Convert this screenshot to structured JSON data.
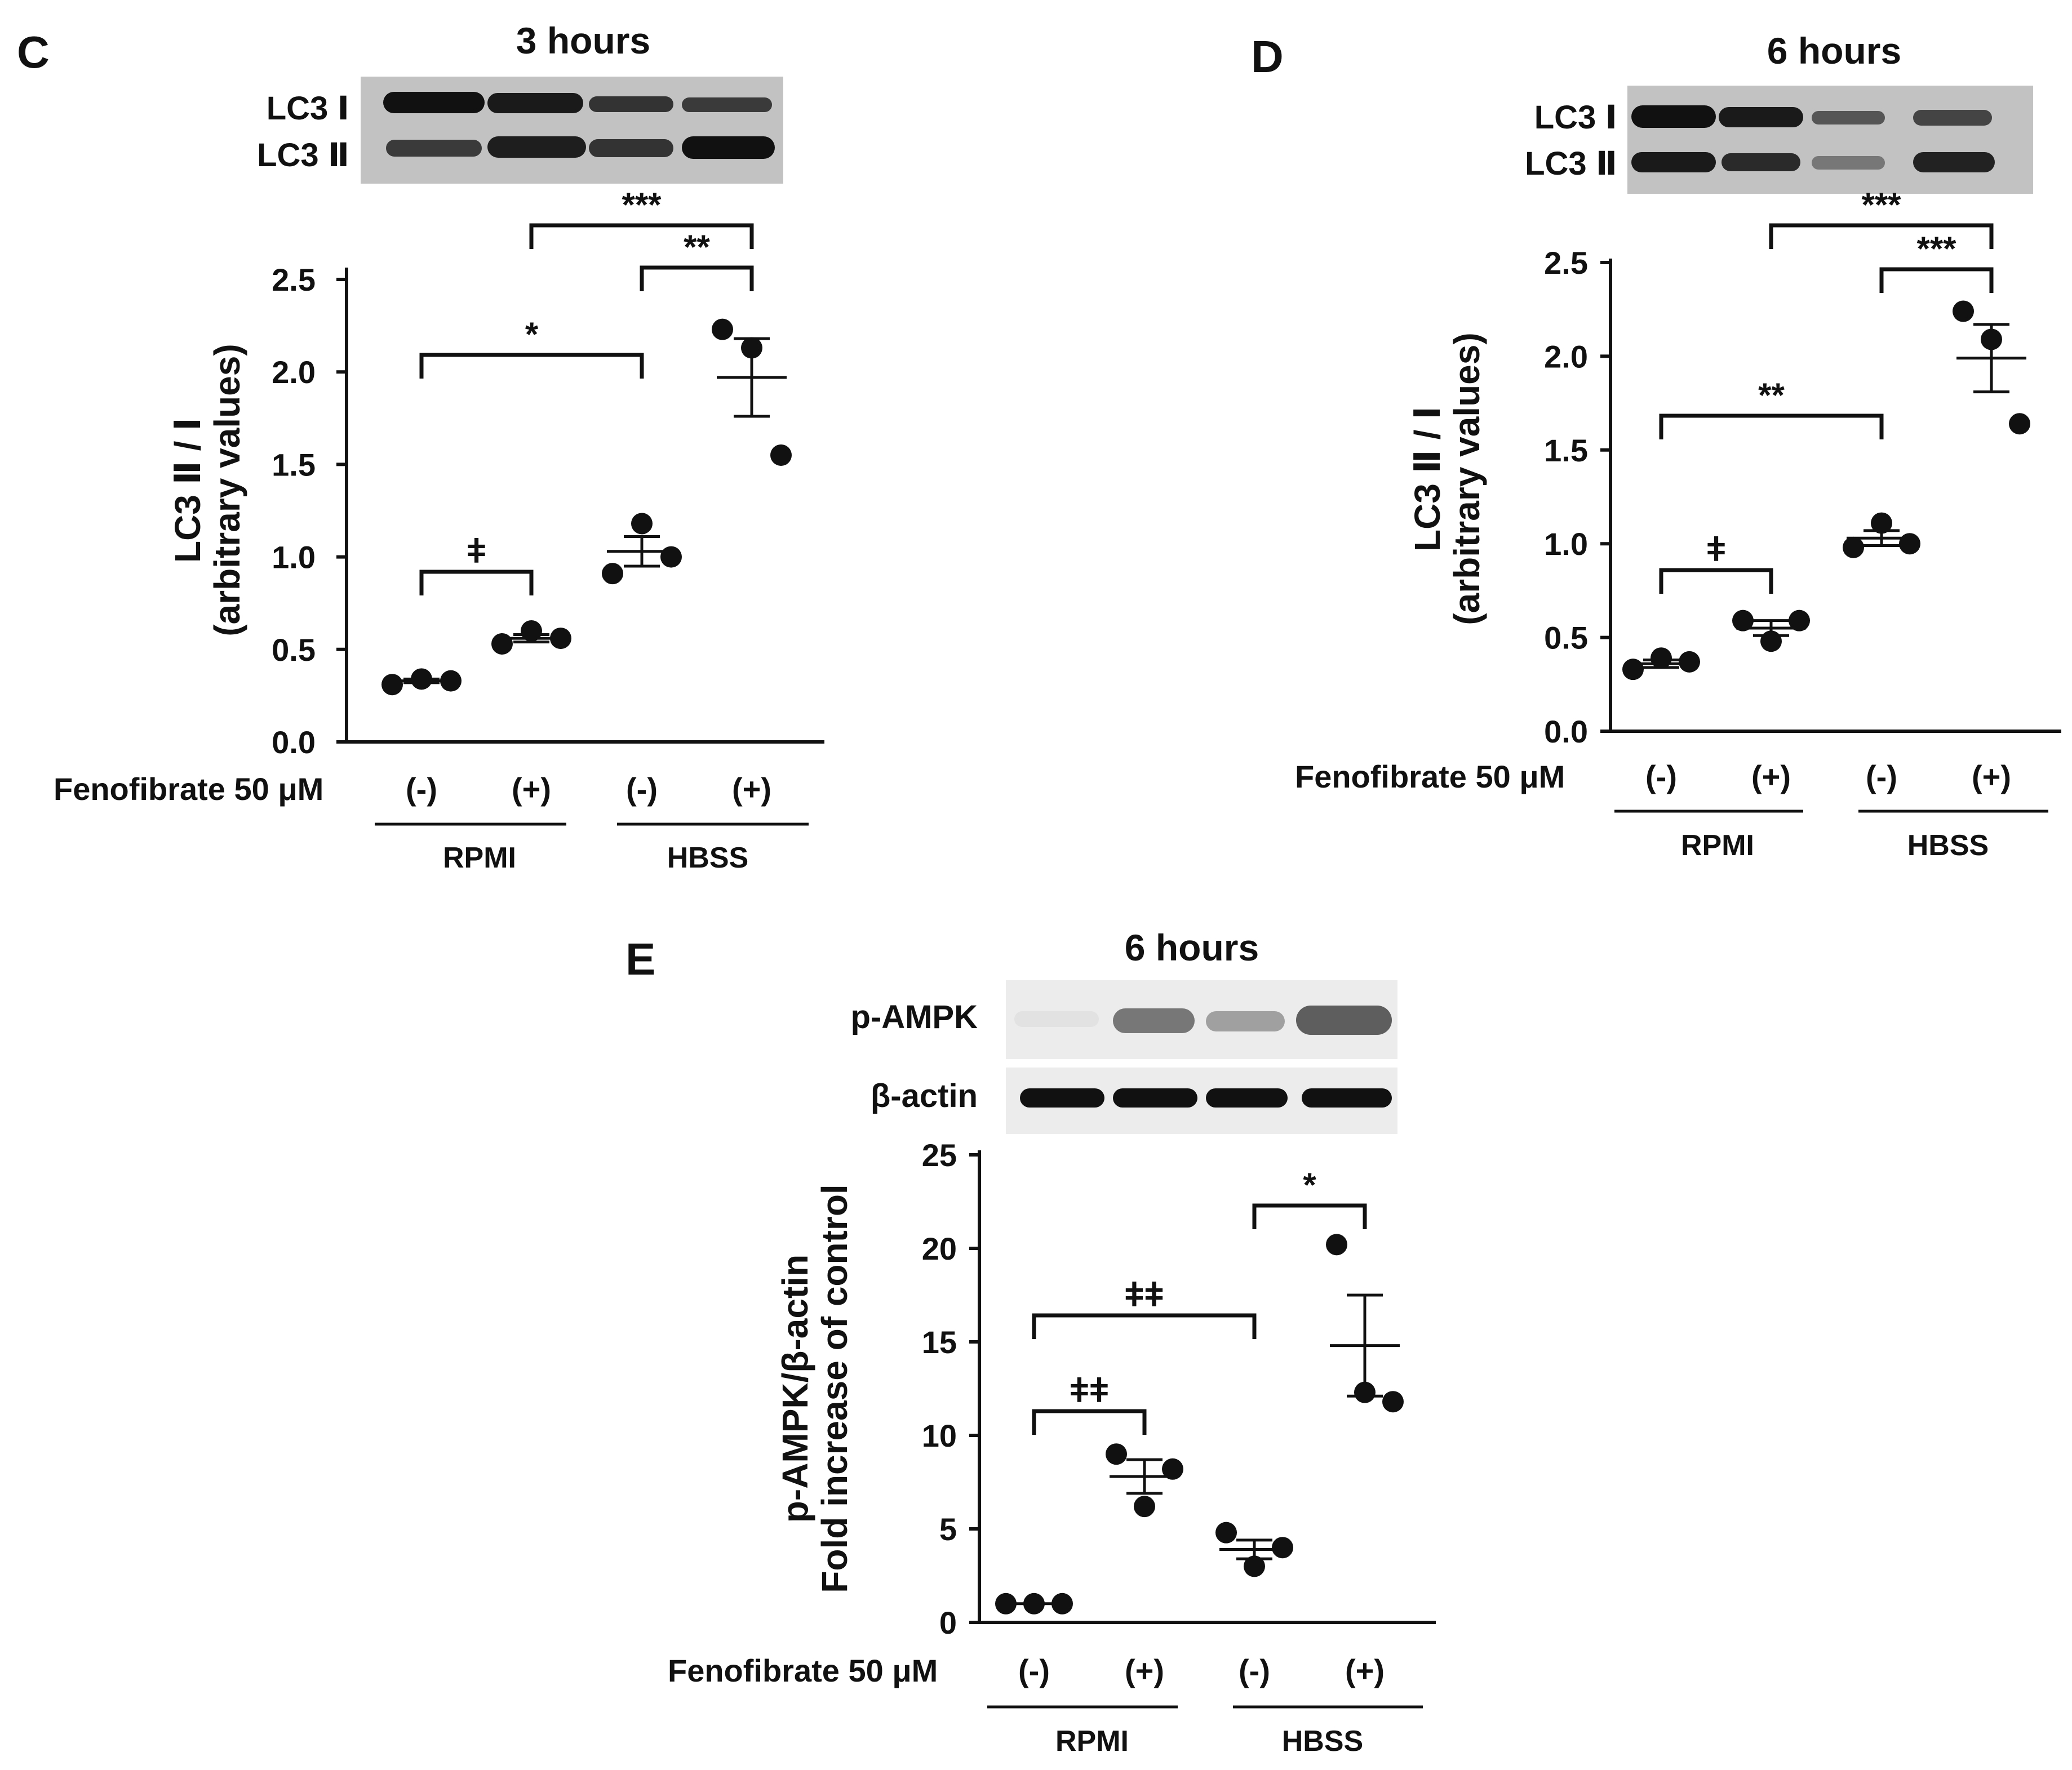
{
  "x_groups": {
    "treatment_label": "Fenofibrate  50 μM",
    "conditions": [
      "(-)",
      "(+)",
      "(-)",
      "(+)"
    ],
    "media": [
      "RPMI",
      "HBSS"
    ]
  },
  "chart_data": [
    {
      "type": "scatter",
      "panel": "C",
      "title": "3 hours",
      "blot_labels": [
        "LC3 Ⅰ",
        "LC3 Ⅱ"
      ],
      "ylabel": "LC3 Ⅱ / Ⅰ",
      "ylabel2": "(arbitrary values)",
      "ylim": [
        0,
        2.5
      ],
      "yticks": [
        0.0,
        0.5,
        1.0,
        1.5,
        2.0,
        2.5
      ],
      "ytick_labels": [
        "0.0",
        "0.5",
        "1.0",
        "1.5",
        "2.0",
        "2.5"
      ],
      "categories": [
        "RPMI (-)",
        "RPMI (+)",
        "HBSS (-)",
        "HBSS (+)"
      ],
      "points": [
        [
          0.31,
          0.34,
          0.33
        ],
        [
          0.53,
          0.6,
          0.56
        ],
        [
          0.91,
          1.18,
          1.0
        ],
        [
          2.23,
          2.13,
          1.55
        ]
      ],
      "mean": [
        0.33,
        0.56,
        1.03,
        1.97
      ],
      "sem": [
        0.01,
        0.02,
        0.08,
        0.21
      ],
      "comparisons": [
        {
          "from": 0,
          "to": 1,
          "label": "ǂ"
        },
        {
          "from": 0,
          "to": 2,
          "label": "*"
        },
        {
          "from": 2,
          "to": 3,
          "label": "**"
        },
        {
          "from": 1,
          "to": 3,
          "label": "***"
        }
      ]
    },
    {
      "type": "scatter",
      "panel": "D",
      "title": "6 hours",
      "blot_labels": [
        "LC3 Ⅰ",
        "LC3 Ⅱ"
      ],
      "ylabel": "LC3 Ⅱ / Ⅰ",
      "ylabel2": "(arbitrary values)",
      "ylim": [
        0,
        2.5
      ],
      "yticks": [
        0.0,
        0.5,
        1.0,
        1.5,
        2.0,
        2.5
      ],
      "ytick_labels": [
        "0.0",
        "0.5",
        "1.0",
        "1.5",
        "2.0",
        "2.5"
      ],
      "categories": [
        "RPMI (-)",
        "RPMI (+)",
        "HBSS (-)",
        "HBSS (+)"
      ],
      "points": [
        [
          0.33,
          0.39,
          0.37
        ],
        [
          0.59,
          0.48,
          0.59
        ],
        [
          0.98,
          1.11,
          1.0
        ],
        [
          2.24,
          2.09,
          1.64
        ]
      ],
      "mean": [
        0.36,
        0.55,
        1.03,
        1.99
      ],
      "sem": [
        0.02,
        0.04,
        0.04,
        0.18
      ],
      "comparisons": [
        {
          "from": 0,
          "to": 1,
          "label": "ǂ"
        },
        {
          "from": 0,
          "to": 2,
          "label": "**"
        },
        {
          "from": 2,
          "to": 3,
          "label": "***"
        },
        {
          "from": 1,
          "to": 3,
          "label": "***"
        }
      ]
    },
    {
      "type": "scatter",
      "panel": "E",
      "title": "6 hours",
      "blot_labels": [
        "p-AMPK",
        "β-actin"
      ],
      "ylabel": "p-AMPK/β-actin",
      "ylabel2": "Fold  increase of control",
      "ylim": [
        0,
        25
      ],
      "yticks": [
        0,
        5,
        10,
        15,
        20,
        25
      ],
      "ytick_labels": [
        "0",
        "5",
        "10",
        "15",
        "20",
        "25"
      ],
      "categories": [
        "RPMI (-)",
        "RPMI (+)",
        "HBSS (-)",
        "HBSS (+)"
      ],
      "points": [
        [
          1.0,
          1.0,
          1.0
        ],
        [
          9.0,
          6.2,
          8.2
        ],
        [
          4.8,
          3.0,
          4.0
        ],
        [
          20.2,
          12.3,
          11.8
        ]
      ],
      "mean": [
        1.0,
        7.8,
        3.9,
        14.8
      ],
      "sem": [
        0.0,
        0.9,
        0.5,
        2.7
      ],
      "comparisons": [
        {
          "from": 0,
          "to": 1,
          "label": "ǂǂ"
        },
        {
          "from": 0,
          "to": 2,
          "label": "ǂǂ"
        },
        {
          "from": 2,
          "to": 3,
          "label": "*"
        }
      ]
    }
  ]
}
